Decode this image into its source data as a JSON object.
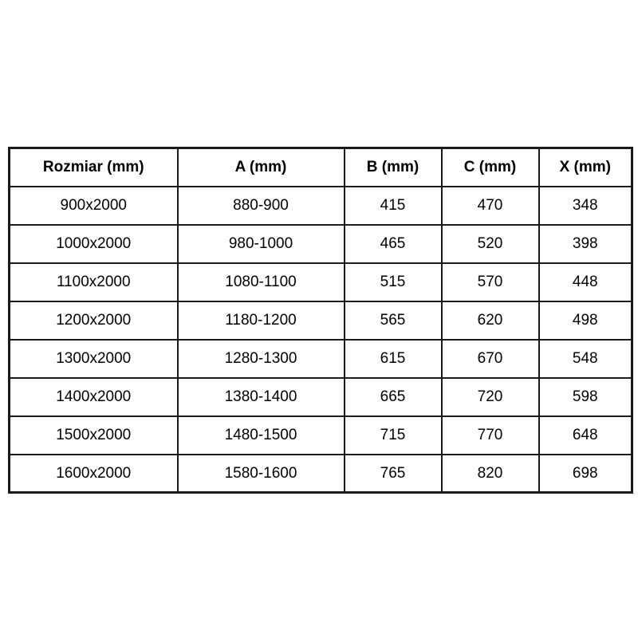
{
  "page": {
    "background_color": "#ffffff",
    "text_color": "#000000",
    "border_color": "#1a1a1a"
  },
  "table": {
    "name": "shower-door-size-specification",
    "columns": [
      "Rozmiar (mm)",
      "A (mm)",
      "B (mm)",
      "C (mm)",
      "X (mm)"
    ],
    "rows": [
      [
        "900x2000",
        "880-900",
        "415",
        "470",
        "348"
      ],
      [
        "1000x2000",
        "980-1000",
        "465",
        "520",
        "398"
      ],
      [
        "1100x2000",
        "1080-1100",
        "515",
        "570",
        "448"
      ],
      [
        "1200x2000",
        "1180-1200",
        "565",
        "620",
        "498"
      ],
      [
        "1300x2000",
        "1280-1300",
        "615",
        "670",
        "548"
      ],
      [
        "1400x2000",
        "1380-1400",
        "665",
        "720",
        "598"
      ],
      [
        "1500x2000",
        "1480-1500",
        "715",
        "770",
        "648"
      ],
      [
        "1600x2000",
        "1580-1600",
        "765",
        "820",
        "698"
      ]
    ]
  }
}
